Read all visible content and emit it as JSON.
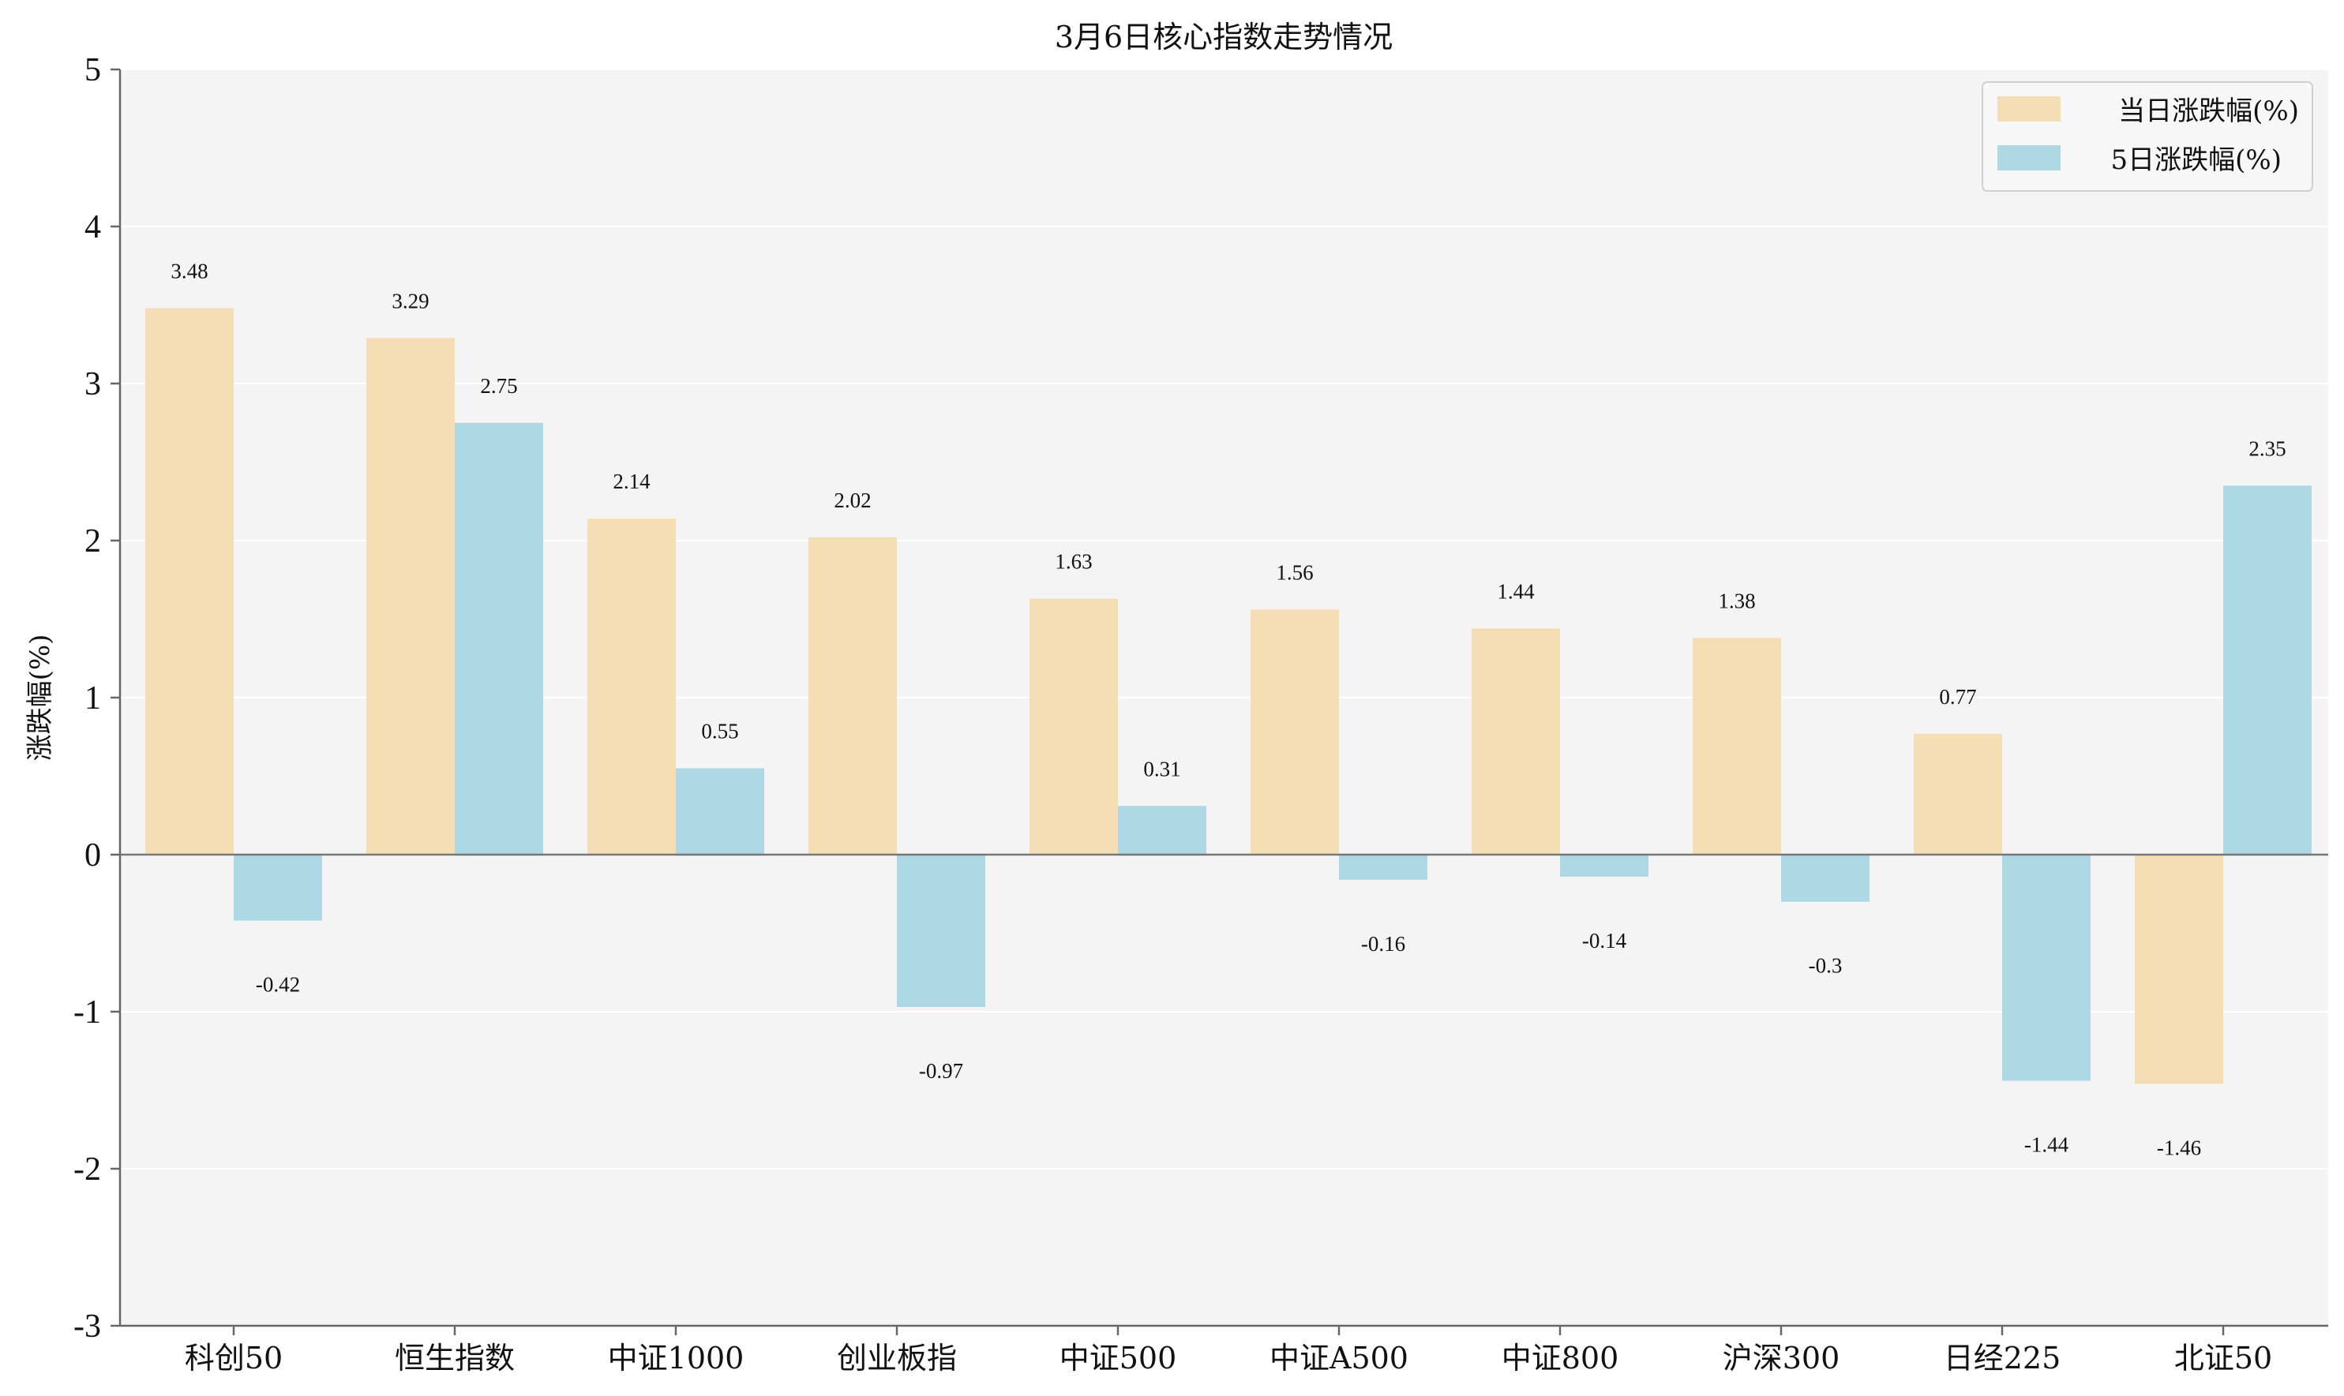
{
  "chart_data": {
    "type": "bar",
    "title": "3月6日核心指数走势情况",
    "xlabel": "",
    "ylabel": "涨跌幅(%)",
    "ylim": [
      -3,
      5
    ],
    "yticks": [
      -3,
      -2,
      -1,
      0,
      1,
      2,
      3,
      4,
      5
    ],
    "grid": true,
    "legend_position": "top-right",
    "categories": [
      "科创50",
      "恒生指数",
      "中证1000",
      "创业板指",
      "中证500",
      "中证A500",
      "中证800",
      "沪深300",
      "日经225",
      "北证50"
    ],
    "series": [
      {
        "name": "当日涨跌幅(%)",
        "color": "#F5DEB3",
        "values": [
          3.48,
          3.29,
          2.14,
          2.02,
          1.63,
          1.56,
          1.44,
          1.38,
          0.77,
          -1.46
        ],
        "labels": [
          "3.48",
          "3.29",
          "2.14",
          "2.02",
          "1.63",
          "1.56",
          "1.44",
          "1.38",
          "0.77",
          "-1.46"
        ]
      },
      {
        "name": "5日涨跌幅(%)",
        "color": "#ADD8E6",
        "values": [
          -0.42,
          2.75,
          0.55,
          -0.97,
          0.31,
          -0.16,
          -0.14,
          -0.3,
          -1.44,
          2.35
        ],
        "labels": [
          "-0.42",
          "2.75",
          "0.55",
          "-0.97",
          "0.31",
          "-0.16",
          "-0.14",
          "-0.3",
          "-1.44",
          "2.35"
        ]
      }
    ],
    "colors": {
      "plot_background": "#F4F4F4",
      "grid": "#FFFFFF",
      "axis": "#666666",
      "zero_line": "#777777"
    }
  }
}
